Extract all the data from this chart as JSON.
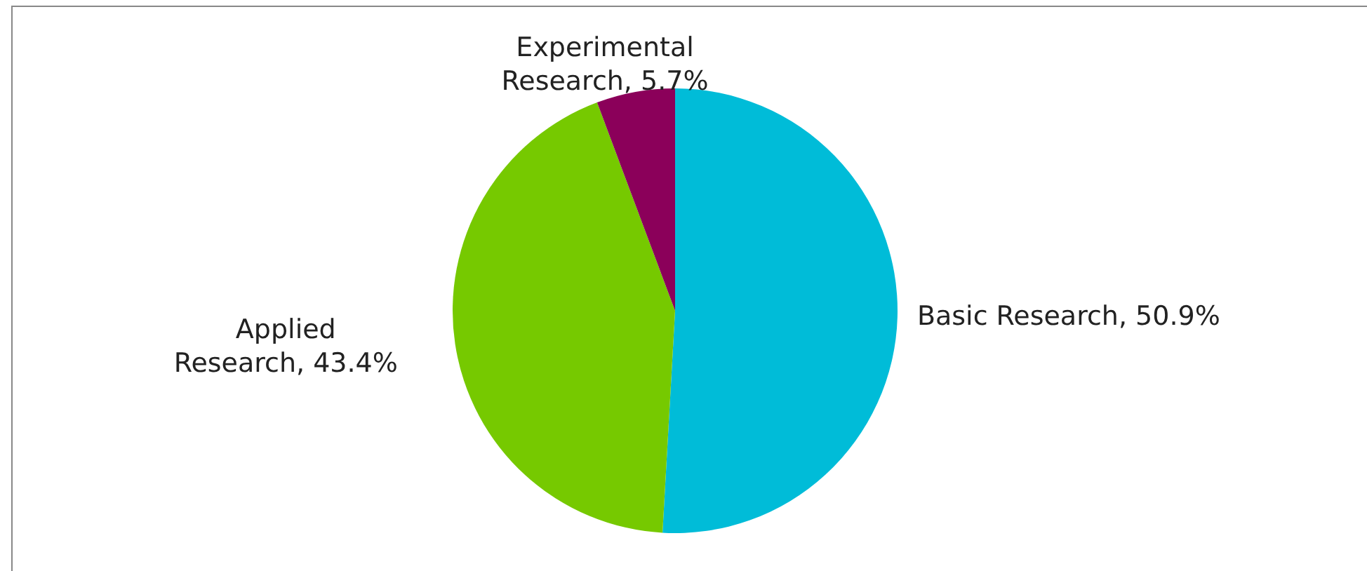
{
  "chart_data": {
    "type": "pie",
    "categories": [
      "Basic Research",
      "Applied Research",
      "Experimental Research"
    ],
    "values": [
      50.9,
      43.4,
      5.7
    ],
    "value_labels": [
      "50.9%",
      "43.4%",
      "5.7%"
    ],
    "colors": [
      "#00bcd8",
      "#76c900",
      "#8b005a"
    ],
    "legend": false
  }
}
